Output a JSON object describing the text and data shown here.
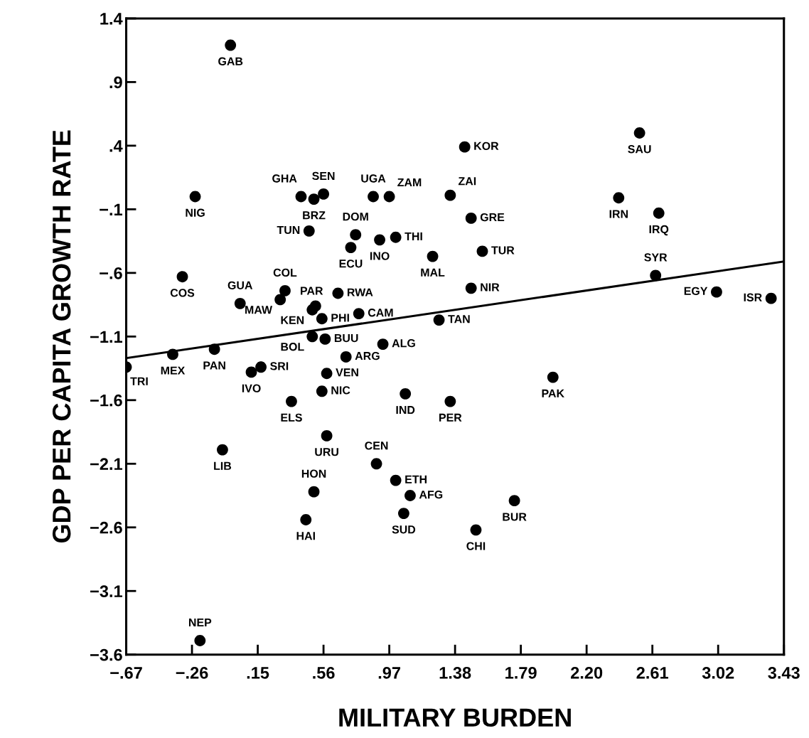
{
  "chart_data": {
    "type": "scatter",
    "xlabel": "MILITARY BURDEN",
    "ylabel": "GDP PER CAPITA GROWTH RATE",
    "xlim": [
      -0.67,
      3.43
    ],
    "ylim": [
      -3.6,
      1.4
    ],
    "xticks": [
      {
        "value": -0.67,
        "label": "−.67"
      },
      {
        "value": -0.26,
        "label": "−.26"
      },
      {
        "value": 0.15,
        "label": ".15"
      },
      {
        "value": 0.56,
        "label": ".56"
      },
      {
        "value": 0.97,
        "label": ".97"
      },
      1.38,
      1.79,
      {
        "value": 2.2,
        "label": "2.20"
      },
      2.61,
      3.02,
      3.43
    ],
    "yticks": [
      1.4,
      {
        "value": 0.9,
        "label": ".9"
      },
      {
        "value": 0.4,
        "label": ".4"
      },
      {
        "value": -0.1,
        "label": "−.1"
      },
      {
        "value": -0.6,
        "label": "−.6"
      },
      {
        "value": -1.1,
        "label": "−1.1"
      },
      {
        "value": -1.6,
        "label": "−1.6"
      },
      {
        "value": -2.1,
        "label": "−2.1"
      },
      {
        "value": -2.6,
        "label": "−2.6"
      },
      {
        "value": -3.1,
        "label": "−3.1"
      },
      {
        "value": -3.6,
        "label": "−3.6"
      }
    ],
    "grid": false,
    "series": [
      {
        "color": "#000000",
        "marker": "circle",
        "x": [
          -0.02,
          -0.24,
          0.42,
          0.56,
          0.5,
          0.87,
          0.97,
          1.35,
          0.47,
          0.76,
          0.73,
          0.91,
          1.01,
          1.24,
          -0.32,
          0.04,
          0.32,
          0.29,
          0.51,
          0.49,
          0.65,
          0.55,
          0.78,
          0.49,
          0.57,
          0.93,
          0.7,
          -0.38,
          -0.12,
          -0.67,
          0.17,
          0.11,
          0.58,
          0.55,
          0.36,
          1.07,
          1.35,
          0.58,
          -0.07,
          0.89,
          1.01,
          1.1,
          0.5,
          1.06,
          0.45,
          -0.21,
          1.99,
          1.75,
          1.51,
          1.44,
          1.48,
          1.55,
          1.48,
          1.28,
          2.53,
          2.4,
          2.65,
          2.63,
          3.01,
          3.35
        ],
        "values": [
          1.19,
          0.0,
          0.0,
          0.02,
          -0.02,
          0.0,
          0.0,
          0.01,
          -0.27,
          -0.3,
          -0.4,
          -0.34,
          -0.32,
          -0.47,
          -0.63,
          -0.84,
          -0.74,
          -0.81,
          -0.86,
          -0.89,
          -0.76,
          -0.96,
          -0.92,
          -1.1,
          -1.12,
          -1.16,
          -1.26,
          -1.24,
          -1.2,
          -1.34,
          -1.34,
          -1.38,
          -1.39,
          -1.53,
          -1.61,
          -1.55,
          -1.61,
          -1.88,
          -1.99,
          -2.1,
          -2.23,
          -2.35,
          -2.32,
          -2.49,
          -2.54,
          -3.49,
          -1.42,
          -2.39,
          -2.62,
          0.39,
          -0.17,
          -0.43,
          -0.72,
          -0.97,
          0.5,
          -0.01,
          -0.13,
          -0.62,
          -0.75,
          -0.8
        ]
      },
      {
        "type": "line",
        "color": "#000000",
        "x": [
          -0.67,
          3.43
        ],
        "values": [
          -1.27,
          -0.51
        ]
      }
    ],
    "annotations": [
      {
        "text": "GAB",
        "x": -0.02,
        "y": 1.19
      },
      {
        "text": "NIG",
        "x": -0.24,
        "y": 0.0
      },
      {
        "text": "GHA",
        "x": 0.42,
        "y": 0.0
      },
      {
        "text": "SEN",
        "x": 0.56,
        "y": 0.02
      },
      {
        "text": "BRZ",
        "x": 0.5,
        "y": -0.02
      },
      {
        "text": "UGA",
        "x": 0.87,
        "y": 0.0
      },
      {
        "text": "ZAM",
        "x": 0.97,
        "y": 0.0
      },
      {
        "text": "ZAI",
        "x": 1.35,
        "y": 0.01
      },
      {
        "text": "TUN",
        "x": 0.47,
        "y": -0.27
      },
      {
        "text": "DOM",
        "x": 0.76,
        "y": -0.3
      },
      {
        "text": "ECU",
        "x": 0.73,
        "y": -0.4
      },
      {
        "text": "INO",
        "x": 0.91,
        "y": -0.34
      },
      {
        "text": "THI",
        "x": 1.01,
        "y": -0.32
      },
      {
        "text": "MAL",
        "x": 1.24,
        "y": -0.47
      },
      {
        "text": "COS",
        "x": -0.32,
        "y": -0.63
      },
      {
        "text": "GUA",
        "x": 0.04,
        "y": -0.84
      },
      {
        "text": "COL",
        "x": 0.32,
        "y": -0.74
      },
      {
        "text": "MAW",
        "x": 0.29,
        "y": -0.81
      },
      {
        "text": "PAR",
        "x": 0.51,
        "y": -0.86
      },
      {
        "text": "KEN",
        "x": 0.49,
        "y": -0.89
      },
      {
        "text": "RWA",
        "x": 0.65,
        "y": -0.76
      },
      {
        "text": "PHI",
        "x": 0.55,
        "y": -0.96
      },
      {
        "text": "CAM",
        "x": 0.78,
        "y": -0.92
      },
      {
        "text": "BOL",
        "x": 0.49,
        "y": -1.1
      },
      {
        "text": "BUU",
        "x": 0.57,
        "y": -1.12
      },
      {
        "text": "ALG",
        "x": 0.93,
        "y": -1.16
      },
      {
        "text": "ARG",
        "x": 0.7,
        "y": -1.26
      },
      {
        "text": "MEX",
        "x": -0.38,
        "y": -1.24
      },
      {
        "text": "PAN",
        "x": -0.12,
        "y": -1.2
      },
      {
        "text": "TRI",
        "x": -0.67,
        "y": -1.34
      },
      {
        "text": "SRI",
        "x": 0.17,
        "y": -1.34
      },
      {
        "text": "IVO",
        "x": 0.11,
        "y": -1.38
      },
      {
        "text": "VEN",
        "x": 0.58,
        "y": -1.39
      },
      {
        "text": "NIC",
        "x": 0.55,
        "y": -1.53
      },
      {
        "text": "ELS",
        "x": 0.36,
        "y": -1.61
      },
      {
        "text": "IND",
        "x": 1.07,
        "y": -1.55
      },
      {
        "text": "PER",
        "x": 1.35,
        "y": -1.61
      },
      {
        "text": "URU",
        "x": 0.58,
        "y": -1.88
      },
      {
        "text": "LIB",
        "x": -0.07,
        "y": -1.99
      },
      {
        "text": "CEN",
        "x": 0.89,
        "y": -2.1
      },
      {
        "text": "ETH",
        "x": 1.01,
        "y": -2.23
      },
      {
        "text": "AFG",
        "x": 1.1,
        "y": -2.35
      },
      {
        "text": "HON",
        "x": 0.5,
        "y": -2.32
      },
      {
        "text": "SUD",
        "x": 1.06,
        "y": -2.49
      },
      {
        "text": "HAI",
        "x": 0.45,
        "y": -2.54
      },
      {
        "text": "NEP",
        "x": -0.21,
        "y": -3.49
      },
      {
        "text": "PAK",
        "x": 1.99,
        "y": -1.42
      },
      {
        "text": "BUR",
        "x": 1.75,
        "y": -2.39
      },
      {
        "text": "CHI",
        "x": 1.51,
        "y": -2.62
      },
      {
        "text": "KOR",
        "x": 1.44,
        "y": 0.39
      },
      {
        "text": "GRE",
        "x": 1.48,
        "y": -0.17
      },
      {
        "text": "TUR",
        "x": 1.55,
        "y": -0.43
      },
      {
        "text": "NIR",
        "x": 1.48,
        "y": -0.72
      },
      {
        "text": "TAN",
        "x": 1.28,
        "y": -0.97
      },
      {
        "text": "SAU",
        "x": 2.53,
        "y": 0.5
      },
      {
        "text": "IRN",
        "x": 2.4,
        "y": -0.01
      },
      {
        "text": "IRQ",
        "x": 2.65,
        "y": -0.13
      },
      {
        "text": "SYR",
        "x": 2.63,
        "y": -0.62
      },
      {
        "text": "EGY",
        "x": 3.01,
        "y": -0.75
      },
      {
        "text": "ISR",
        "x": 3.35,
        "y": -0.8
      }
    ]
  }
}
